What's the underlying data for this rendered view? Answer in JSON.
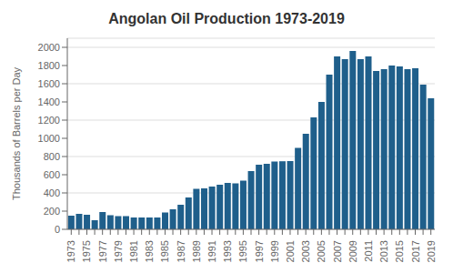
{
  "chart_data": {
    "type": "bar",
    "title": "Angolan Oil Production 1973-2019",
    "ylabel": "Thousands of Barrels per Day",
    "categories": [
      "1973",
      null,
      "1975",
      null,
      "1977",
      null,
      "1979",
      null,
      "1981",
      null,
      "1983",
      null,
      "1985",
      null,
      "1987",
      null,
      "1989",
      null,
      "1991",
      null,
      "1993",
      null,
      "1995",
      null,
      "1997",
      null,
      "1999",
      null,
      "2001",
      null,
      "2003",
      null,
      "2005",
      null,
      "2007",
      null,
      "2009",
      null,
      "2011",
      null,
      "2013",
      null,
      "2015",
      null,
      "2017",
      null,
      "2019"
    ],
    "values": [
      150,
      170,
      160,
      100,
      190,
      155,
      145,
      145,
      130,
      130,
      130,
      130,
      185,
      220,
      270,
      350,
      445,
      450,
      470,
      490,
      510,
      505,
      535,
      640,
      710,
      720,
      745,
      748,
      750,
      895,
      1050,
      1230,
      1400,
      1700,
      1900,
      1870,
      1960,
      1870,
      1900,
      1740,
      1760,
      1800,
      1790,
      1760,
      1770,
      1590,
      1440
    ],
    "color": "#1f5f8b",
    "ylim": [
      0,
      2100
    ],
    "yticks": [
      0,
      200,
      400,
      600,
      800,
      1000,
      1200,
      1400,
      1600,
      1800,
      2000
    ],
    "grid": true
  }
}
